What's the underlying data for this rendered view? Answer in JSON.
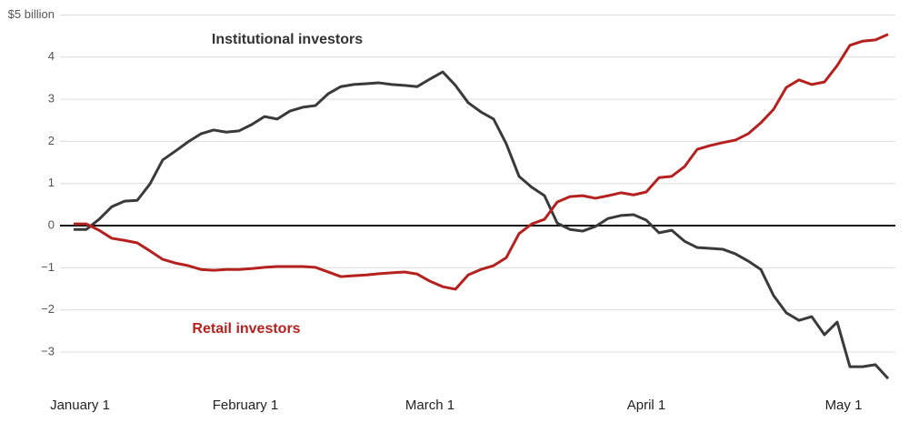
{
  "chart_data": {
    "type": "line",
    "x": [
      -1,
      1,
      3,
      5,
      7,
      9,
      11,
      13,
      15,
      17,
      19,
      21,
      23,
      25,
      27,
      29,
      31,
      33,
      35,
      37,
      39,
      41,
      43,
      45,
      47,
      49,
      51,
      53,
      55,
      57,
      59,
      61,
      63,
      65,
      67,
      69,
      71,
      73,
      75,
      77,
      79,
      81,
      83,
      85,
      87,
      89,
      91,
      93,
      95,
      97,
      99,
      101,
      103,
      105,
      107,
      109,
      111,
      113,
      115,
      117,
      119,
      121,
      123,
      125,
      127
    ],
    "series": [
      {
        "name": "Institutional investors",
        "color": "#3a3a3a",
        "values": [
          -0.09,
          -0.09,
          0.15,
          0.45,
          0.58,
          0.6,
          0.99,
          1.56,
          1.77,
          1.99,
          2.18,
          2.27,
          2.22,
          2.25,
          2.4,
          2.59,
          2.53,
          2.72,
          2.81,
          2.85,
          3.13,
          3.3,
          3.35,
          3.37,
          3.39,
          3.35,
          3.33,
          3.3,
          3.48,
          3.65,
          3.33,
          2.92,
          2.7,
          2.53,
          1.94,
          1.17,
          0.91,
          0.71,
          0.06,
          -0.09,
          -0.13,
          -0.02,
          0.17,
          0.24,
          0.26,
          0.13,
          -0.17,
          -0.11,
          -0.37,
          -0.52,
          -0.54,
          -0.56,
          -0.67,
          -0.84,
          -1.04,
          -1.66,
          -2.07,
          -2.25,
          -2.16,
          -2.59,
          -2.29,
          -3.35,
          -3.35,
          -3.3,
          -3.63
        ]
      },
      {
        "name": "Retail investors",
        "color": "#b5211f",
        "values": [
          0.04,
          0.04,
          -0.11,
          -0.3,
          -0.35,
          -0.41,
          -0.6,
          -0.8,
          -0.89,
          -0.95,
          -1.04,
          -1.06,
          -1.04,
          -1.04,
          -1.02,
          -0.99,
          -0.97,
          -0.97,
          -0.97,
          -0.99,
          -1.1,
          -1.21,
          -1.19,
          -1.17,
          -1.14,
          -1.12,
          -1.1,
          -1.15,
          -1.32,
          -1.45,
          -1.51,
          -1.17,
          -1.04,
          -0.95,
          -0.76,
          -0.19,
          0.04,
          0.15,
          0.56,
          0.69,
          0.71,
          0.65,
          0.71,
          0.78,
          0.73,
          0.8,
          1.14,
          1.17,
          1.4,
          1.81,
          1.9,
          1.97,
          2.03,
          2.18,
          2.44,
          2.76,
          3.28,
          3.46,
          3.35,
          3.41,
          3.8,
          4.28,
          4.38,
          4.41,
          4.54
        ]
      }
    ],
    "xlim": [
      -7,
      128
    ],
    "xticks": [
      {
        "value": 0,
        "label": "January 1"
      },
      {
        "value": 26,
        "label": "February 1"
      },
      {
        "value": 55,
        "label": "March 1"
      },
      {
        "value": 89,
        "label": "April 1"
      },
      {
        "value": 120,
        "label": "May 1"
      }
    ],
    "ylim": [
      -3.8,
      5
    ],
    "yticks": [
      {
        "value": 5,
        "label": "$5 billion"
      },
      4,
      3,
      2,
      1,
      0,
      {
        "value": -1,
        "label": "−1"
      },
      {
        "value": -2,
        "label": "−2"
      },
      {
        "value": -3,
        "label": "−3"
      }
    ],
    "grid": true
  }
}
